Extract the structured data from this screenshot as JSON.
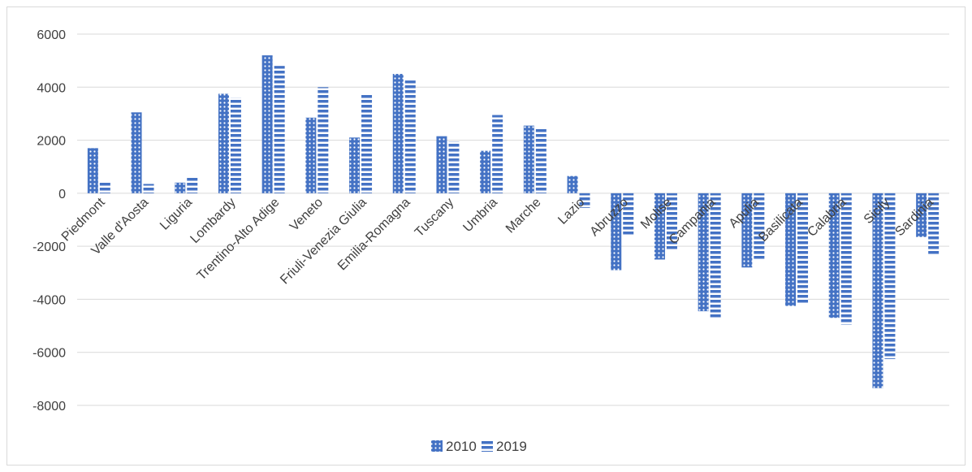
{
  "chart_data": {
    "type": "bar",
    "title": "",
    "xlabel": "",
    "ylabel": "",
    "ylim": [
      -8000,
      6000
    ],
    "yticks": [
      6000,
      4000,
      2000,
      0,
      -2000,
      -4000,
      -6000,
      -8000
    ],
    "ytick_labels": [
      "6000",
      "4000",
      "2000",
      "0",
      "-2000",
      "-4000",
      "-6000",
      "-8000"
    ],
    "grid": true,
    "legend_position": "bottom",
    "categories": [
      "Piedmont",
      "Valle d'Aosta",
      "Liguria",
      "Lombardy",
      "Trentino-Alto Adige",
      "Veneto",
      "Friuli-Venezia Giulia",
      "Emilia-Romagna",
      "Tuscany",
      "Umbria",
      "Marche",
      "Lazio",
      "Abruzzo",
      "Molise",
      "Campania",
      "Apulia",
      "Basilicata",
      "Calabria",
      "Sicily",
      "Sardinia"
    ],
    "series": [
      {
        "name": "2010",
        "pattern": "dotted",
        "color": "#4472c4",
        "values": [
          1700,
          3050,
          400,
          3750,
          5200,
          2850,
          2100,
          4500,
          2150,
          1600,
          2550,
          650,
          -2900,
          -2500,
          -4450,
          -2800,
          -4250,
          -4700,
          -7350,
          -1650
        ]
      },
      {
        "name": "2019",
        "pattern": "dashed",
        "color": "#4472c4",
        "values": [
          450,
          350,
          600,
          3600,
          4800,
          4000,
          3750,
          4250,
          1950,
          2950,
          2450,
          -550,
          -1600,
          -2150,
          -4700,
          -2500,
          -4150,
          -4950,
          -6250,
          -2350
        ]
      }
    ]
  }
}
